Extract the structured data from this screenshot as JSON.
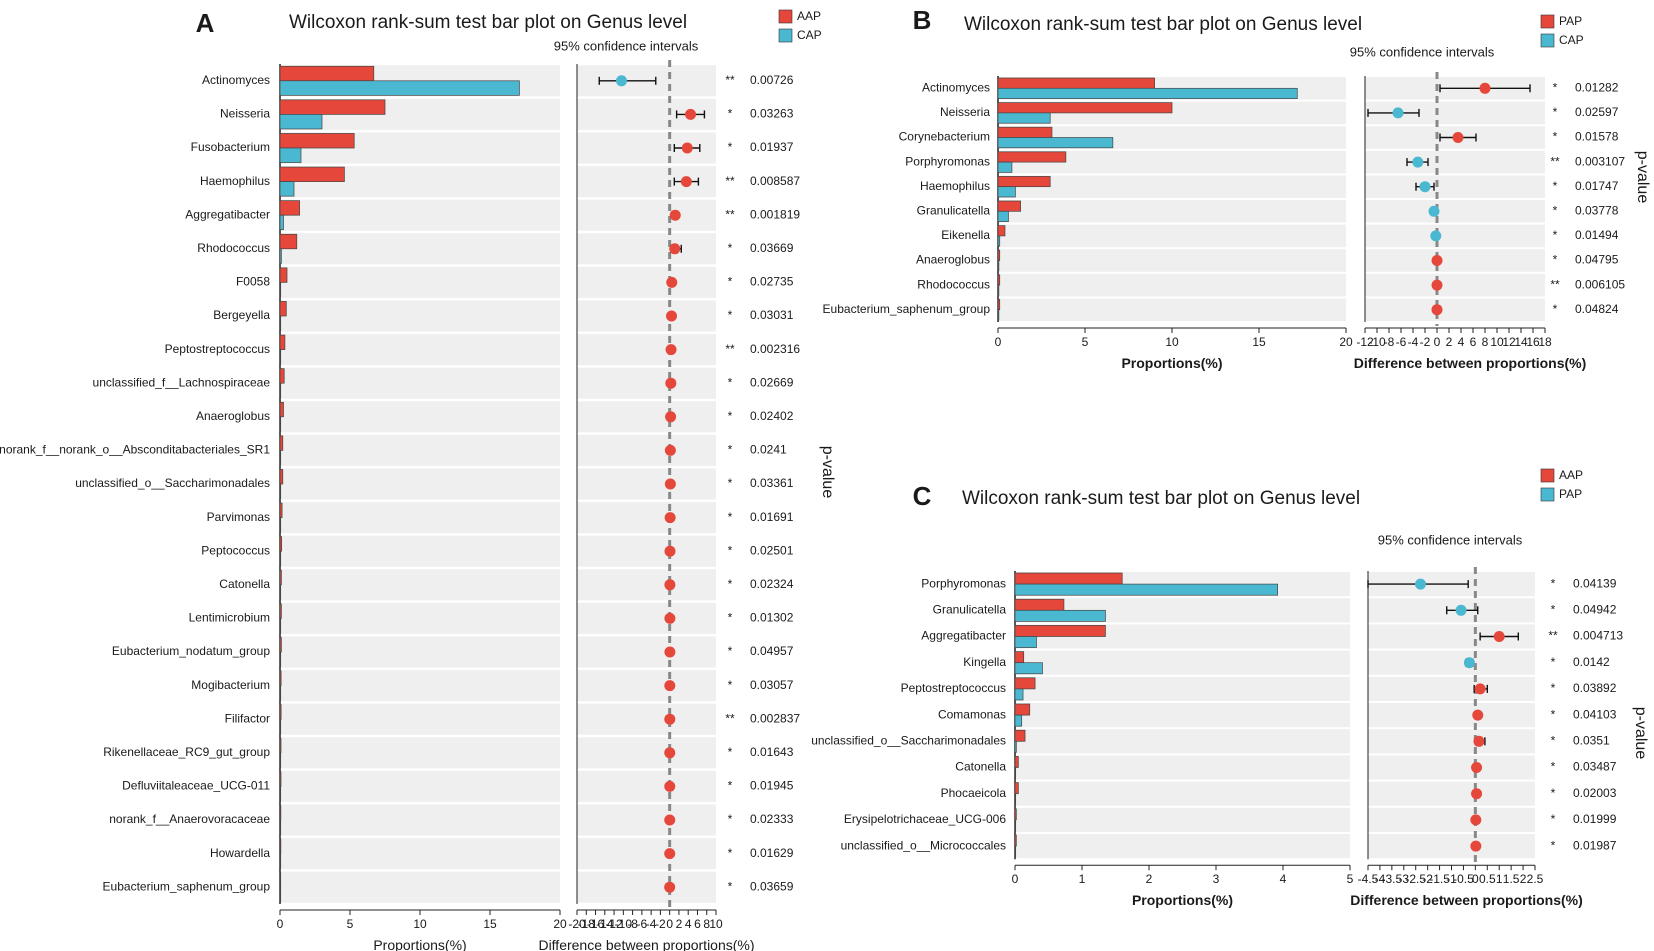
{
  "colors": {
    "red": "#e5473a",
    "blue": "#4bb8d1",
    "band": "#efefef",
    "dash": "#888888"
  },
  "chart_data": [
    {
      "type": "bar",
      "panel_letter": "A",
      "title": "Wilcoxon rank-sum test bar plot on Genus level",
      "ci_label": "95% confidence intervals",
      "xlabel": "Proportions(%)",
      "diff_label": "Difference between proportions(%)",
      "pvalue_label": "p-value",
      "categories": [
        "Actinomyces",
        "Neisseria",
        "Fusobacterium",
        "Haemophilus",
        "Aggregatibacter",
        "Rhodococcus",
        "F0058",
        "Bergeyella",
        "Peptostreptococcus",
        "unclassified_f__Lachnospiraceae",
        "Anaeroglobus",
        "norank_f__norank_o__Absconditabacteriales_SR1",
        "unclassified_o__Saccharimonadales",
        "Parvimonas",
        "Peptococcus",
        "Catonella",
        "Lentimicrobium",
        "Eubacterium_nodatum_group",
        "Mogibacterium",
        "Filifactor",
        "Rikenellaceae_RC9_gut_group",
        "Defluviitaleaceae_UCG-011",
        "norank_f__Anaerovoracaceae",
        "Howardella",
        "Eubacterium_saphenum_group"
      ],
      "series": [
        {
          "name": "AAP",
          "color": "red",
          "values": [
            6.7,
            7.5,
            5.3,
            4.6,
            1.4,
            1.2,
            0.5,
            0.45,
            0.35,
            0.3,
            0.25,
            0.2,
            0.2,
            0.15,
            0.12,
            0.1,
            0.1,
            0.1,
            0.08,
            0.08,
            0.07,
            0.07,
            0.06,
            0.06,
            0.05
          ]
        },
        {
          "name": "CAP",
          "color": "blue",
          "values": [
            17.1,
            3.0,
            1.5,
            1.0,
            0.25,
            0.1,
            0.05,
            0.05,
            0.05,
            0.05,
            0.05,
            0.05,
            0.05,
            0.05,
            0.05,
            0.05,
            0.05,
            0.05,
            0.05,
            0.05,
            0.05,
            0.05,
            0.05,
            0.05,
            0.05
          ]
        }
      ],
      "xlim": [
        0,
        20
      ],
      "xticks": [
        "0",
        "5",
        "10",
        "15",
        "20"
      ],
      "diff": {
        "xlim": [
          -20,
          10
        ],
        "xticks": [
          "-20",
          "-18",
          "-16",
          "-14",
          "-12",
          "-10",
          "-8",
          "-6",
          "-4",
          "-2",
          "0",
          "2",
          "4",
          "6",
          "8",
          "10"
        ],
        "est": [
          -10.4,
          4.5,
          3.8,
          3.6,
          1.2,
          1.1,
          0.45,
          0.4,
          0.3,
          0.25,
          0.2,
          0.15,
          0.15,
          0.1,
          0.07,
          0.05,
          0.05,
          0.05,
          0.03,
          0.03,
          0.02,
          0.02,
          0.01,
          0.01,
          0.0
        ],
        "low": [
          -15.2,
          1.5,
          1.0,
          1.0,
          0.5,
          0.3,
          0.1,
          0.1,
          0.05,
          0.05,
          0.05,
          0.02,
          0.02,
          0.02,
          0.01,
          0.01,
          0.01,
          0.01,
          0.0,
          0.0,
          0.0,
          0.0,
          0.0,
          0.0,
          -0.05
        ],
        "high": [
          -3.0,
          7.5,
          6.5,
          6.2,
          1.8,
          2.5,
          0.8,
          0.7,
          0.6,
          0.5,
          0.4,
          0.3,
          0.3,
          0.2,
          0.15,
          0.1,
          0.1,
          0.1,
          0.06,
          0.06,
          0.05,
          0.05,
          0.03,
          0.03,
          0.05
        ]
      },
      "stars": [
        "**",
        "*",
        "*",
        "**",
        "**",
        "*",
        "*",
        "*",
        "**",
        "*",
        "*",
        "*",
        "*",
        "*",
        "*",
        "*",
        "*",
        "*",
        "*",
        "**",
        "*",
        "*",
        "*",
        "*",
        "*"
      ],
      "pvalues": [
        "0.00726",
        "0.03263",
        "0.01937",
        "0.008587",
        "0.001819",
        "0.03669",
        "0.02735",
        "0.03031",
        "0.002316",
        "0.02669",
        "0.02402",
        "0.0241",
        "0.03361",
        "0.01691",
        "0.02501",
        "0.02324",
        "0.01302",
        "0.04957",
        "0.03057",
        "0.002837",
        "0.01643",
        "0.01945",
        "0.02333",
        "0.01629",
        "0.03659"
      ]
    },
    {
      "type": "bar",
      "panel_letter": "B",
      "title": "Wilcoxon rank-sum test bar plot on Genus level",
      "ci_label": "95% confidence intervals",
      "xlabel": "Proportions(%)",
      "diff_label": "Difference between proportions(%)",
      "pvalue_label": "p-value",
      "categories": [
        "Actinomyces",
        "Neisseria",
        "Corynebacterium",
        "Porphyromonas",
        "Haemophilus",
        "Granulicatella",
        "Eikenella",
        "Anaeroglobus",
        "Rhodococcus",
        "Eubacterium_saphenum_group"
      ],
      "series": [
        {
          "name": "PAP",
          "color": "red",
          "values": [
            9.0,
            10.0,
            3.1,
            3.9,
            3.0,
            1.3,
            0.4,
            0.1,
            0.1,
            0.1
          ]
        },
        {
          "name": "CAP",
          "color": "blue",
          "values": [
            17.2,
            3.0,
            6.6,
            0.8,
            1.0,
            0.6,
            0.1,
            0.05,
            0.05,
            0.05
          ]
        }
      ],
      "xlim": [
        0,
        20
      ],
      "xticks": [
        "0",
        "5",
        "10",
        "15",
        "20"
      ],
      "diff": {
        "xlim": [
          -12,
          18
        ],
        "xticks": [
          "-12",
          "-10",
          "-8",
          "-6",
          "-4",
          "-2",
          "0",
          "2",
          "4",
          "6",
          "8",
          "10",
          "12",
          "14",
          "16",
          "18"
        ],
        "est": [
          8.0,
          -6.5,
          3.5,
          -3.2,
          -2.0,
          -0.5,
          -0.2,
          0.0,
          0.0,
          0.0
        ],
        "low": [
          0.5,
          -11.5,
          0.5,
          -5.0,
          -3.5,
          -0.8,
          -0.4,
          -0.1,
          -0.1,
          -0.1
        ],
        "high": [
          15.5,
          -3.0,
          6.5,
          -1.5,
          -0.5,
          -0.2,
          0.0,
          0.1,
          0.1,
          0.1
        ]
      },
      "stars": [
        "*",
        "*",
        "*",
        "**",
        "*",
        "*",
        "*",
        "*",
        "**",
        "*"
      ],
      "pvalues": [
        "0.01282",
        "0.02597",
        "0.01578",
        "0.003107",
        "0.01747",
        "0.03778",
        "0.01494",
        "0.04795",
        "0.006105",
        "0.04824"
      ]
    },
    {
      "type": "bar",
      "panel_letter": "C",
      "title": "Wilcoxon rank-sum test bar plot on Genus level",
      "ci_label": "95% confidence intervals",
      "xlabel": "Proportions(%)",
      "diff_label": "Difference between proportions(%)",
      "pvalue_label": "p-value",
      "categories": [
        "Porphyromonas",
        "Granulicatella",
        "Aggregatibacter",
        "Kingella",
        "Peptostreptococcus",
        "Comamonas",
        "unclassified_o__Saccharimonadales",
        "Catonella",
        "Phocaeicola",
        "Erysipelotrichaceae_UCG-006",
        "unclassified_o__Micrococcales"
      ],
      "series": [
        {
          "name": "AAP",
          "color": "red",
          "values": [
            1.6,
            0.73,
            1.35,
            0.13,
            0.3,
            0.22,
            0.15,
            0.05,
            0.05,
            0.02,
            0.02
          ]
        },
        {
          "name": "PAP",
          "color": "blue",
          "values": [
            3.92,
            1.35,
            0.32,
            0.41,
            0.12,
            0.1,
            0.02,
            0.01,
            0.01,
            0.01,
            0.01
          ]
        }
      ],
      "xlim": [
        0,
        5
      ],
      "xticks": [
        "0",
        "1",
        "2",
        "3",
        "4",
        "5"
      ],
      "diff": {
        "xlim": [
          -4.5,
          2.5
        ],
        "xticks": [
          "-4.5",
          "-4",
          "-3.5",
          "-3",
          "-2.5",
          "-2",
          "-1.5",
          "-1",
          "-0.5",
          "0",
          "0.5",
          "1",
          "1.5",
          "2",
          "2.5"
        ],
        "est": [
          -2.3,
          -0.6,
          1.0,
          -0.25,
          0.2,
          0.1,
          0.15,
          0.05,
          0.05,
          0.02,
          0.02
        ],
        "low": [
          -4.5,
          -1.2,
          0.2,
          -0.4,
          -0.05,
          0.0,
          0.0,
          0.0,
          0.0,
          0.0,
          0.0
        ],
        "high": [
          -0.3,
          0.1,
          1.8,
          -0.1,
          0.5,
          0.2,
          0.4,
          0.1,
          0.1,
          0.05,
          0.05
        ]
      },
      "stars": [
        "*",
        "*",
        "**",
        "*",
        "*",
        "*",
        "*",
        "*",
        "*",
        "*",
        "*"
      ],
      "pvalues": [
        "0.04139",
        "0.04942",
        "0.004713",
        "0.0142",
        "0.03892",
        "0.04103",
        "0.0351",
        "0.03487",
        "0.02003",
        "0.01999",
        "0.01987"
      ]
    }
  ]
}
